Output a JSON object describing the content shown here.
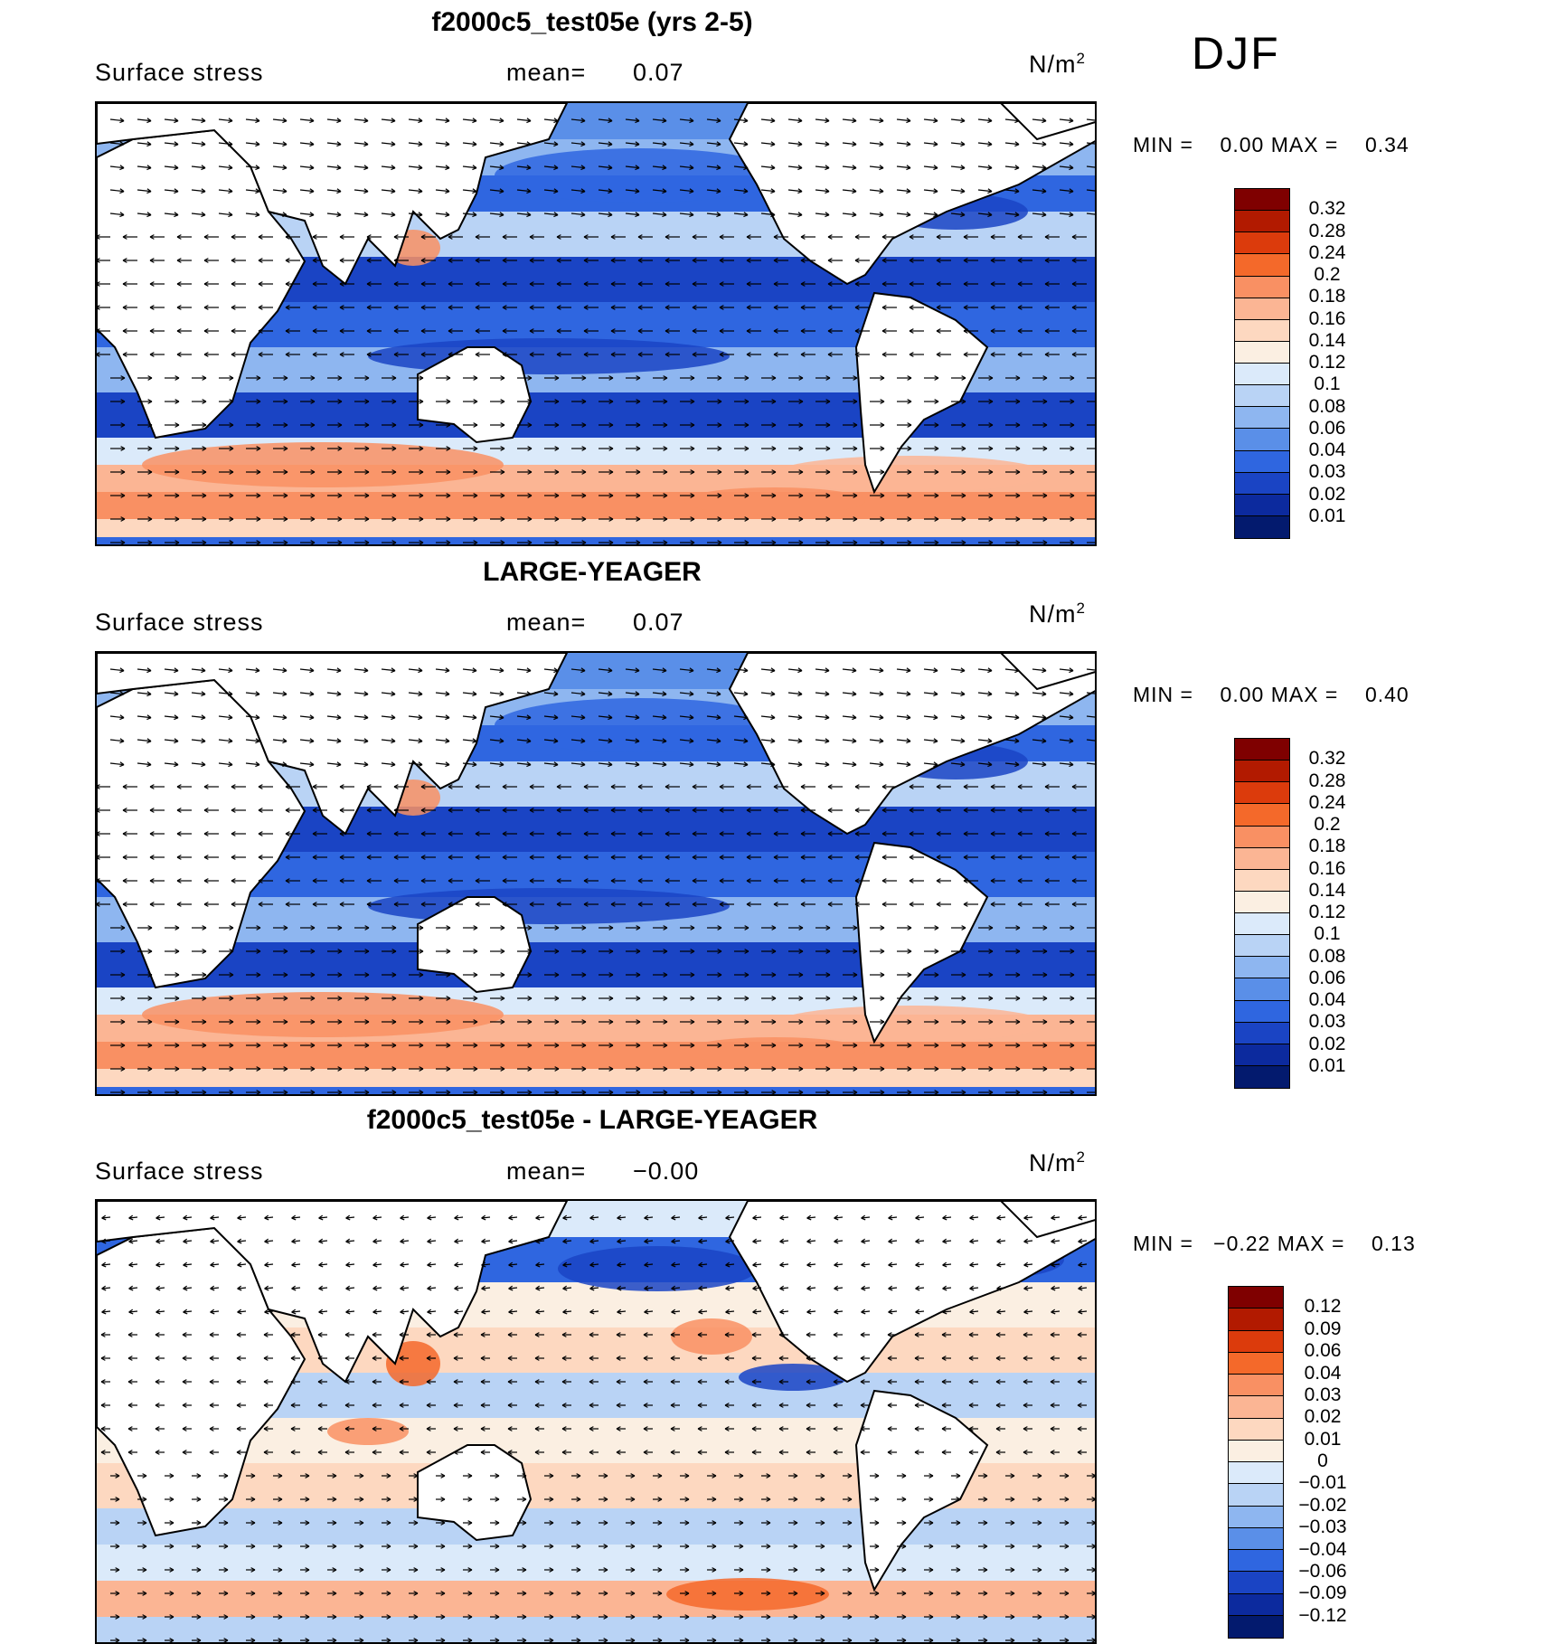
{
  "season": "DJF",
  "panels": [
    {
      "title": "f2000c5_test05e (yrs 2-5)",
      "variable": "Surface stress",
      "mean_label": "mean=",
      "mean_value": "0.07",
      "units_base": "N/m",
      "units_exp": "2",
      "min_label": "MIN =",
      "min_value": "0.00",
      "max_label": "MAX =",
      "max_value": "0.34",
      "colorbar_labels": [
        "0.32",
        "0.28",
        "0.24",
        "0.2",
        "0.18",
        "0.16",
        "0.14",
        "0.12",
        "0.1",
        "0.08",
        "0.06",
        "0.04",
        "0.03",
        "0.02",
        "0.01"
      ]
    },
    {
      "title": "LARGE-YEAGER",
      "variable": "Surface stress",
      "mean_label": "mean=",
      "mean_value": "0.07",
      "units_base": "N/m",
      "units_exp": "2",
      "min_label": "MIN =",
      "min_value": "0.00",
      "max_label": "MAX =",
      "max_value": "0.40",
      "colorbar_labels": [
        "0.32",
        "0.28",
        "0.24",
        "0.2",
        "0.18",
        "0.16",
        "0.14",
        "0.12",
        "0.1",
        "0.08",
        "0.06",
        "0.04",
        "0.03",
        "0.02",
        "0.01"
      ]
    },
    {
      "title": "f2000c5_test05e - LARGE-YEAGER",
      "variable": "Surface stress",
      "mean_label": "mean=",
      "mean_value": "−0.00",
      "units_base": "N/m",
      "units_exp": "2",
      "min_label": "MIN =",
      "min_value": "−0.22",
      "max_label": "MAX =",
      "max_value": "0.13",
      "colorbar_labels": [
        "0.12",
        "0.09",
        "0.06",
        "0.04",
        "0.03",
        "0.02",
        "0.01",
        "0",
        "−0.01",
        "−0.02",
        "−0.03",
        "−0.04",
        "−0.06",
        "−0.09",
        "−0.12"
      ]
    }
  ],
  "colorbar_colors": [
    "#7f0000",
    "#b21a00",
    "#dc3b0c",
    "#f4692a",
    "#f99063",
    "#fbb594",
    "#fdd8c0",
    "#fbefe2",
    "#dbeafa",
    "#b9d3f5",
    "#8eb6f0",
    "#5a8fe8",
    "#2f66e0",
    "#1a44c4",
    "#0c2a9e",
    "#031a6e"
  ],
  "colors": {
    "ocean_low": "#1a44c4",
    "ocean_mid": "#8eb6f0",
    "ocean_high": "#f4692a",
    "land": "#ffffff",
    "coast": "#000000"
  }
}
